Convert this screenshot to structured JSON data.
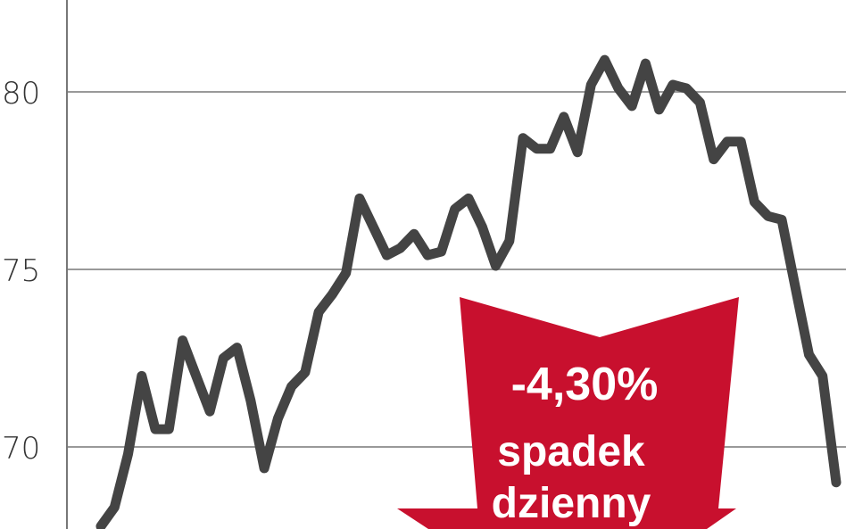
{
  "chart_data": {
    "type": "line",
    "title": "",
    "xlabel": "",
    "ylabel": "",
    "ylim": [
      67.7,
      82.6
    ],
    "yticks": [
      70,
      75,
      80
    ],
    "ytick_labels": [
      "70",
      "75",
      "80"
    ],
    "grid": true,
    "line_color": "#444444",
    "values": [
      67.7,
      68.3,
      69.8,
      72.0,
      70.5,
      70.5,
      73.0,
      72.0,
      71.0,
      72.5,
      72.8,
      71.3,
      69.4,
      70.8,
      71.7,
      72.1,
      73.8,
      74.3,
      74.9,
      77.0,
      76.2,
      75.4,
      75.6,
      76.0,
      75.4,
      75.5,
      76.7,
      77.0,
      76.2,
      75.1,
      75.8,
      78.7,
      78.4,
      78.4,
      79.3,
      78.3,
      80.2,
      80.9,
      80.1,
      79.6,
      80.8,
      79.5,
      80.2,
      80.1,
      79.7,
      78.1,
      78.6,
      78.6,
      76.9,
      76.5,
      76.4,
      74.5,
      72.6,
      72.0,
      69.0
    ],
    "annotation": {
      "value": "-4,30%",
      "line1": "spadek",
      "line2": "dzienny",
      "color": "#c8102e"
    }
  }
}
